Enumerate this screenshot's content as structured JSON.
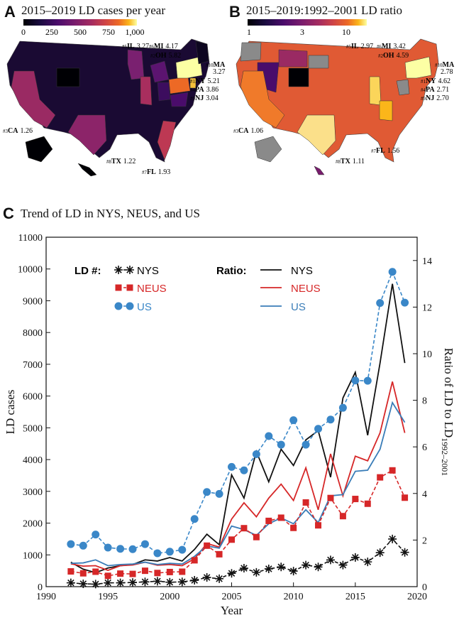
{
  "panels": {
    "a": {
      "letter": "A",
      "title": "2015–2019 LD cases per year",
      "colorbar_ticks": [
        "0",
        "250",
        "500",
        "750",
        "1,000"
      ],
      "labels": [
        {
          "rank": "#5",
          "state": "IL",
          "value": "3.27"
        },
        {
          "rank": "#6",
          "state": "MI",
          "value": "4.17"
        },
        {
          "rank": "#2",
          "state": "OH",
          "value": "5.82"
        },
        {
          "rank": "#10",
          "state": "MA",
          "value": "3.27"
        },
        {
          "rank": "#1",
          "state": "NY",
          "value": "5.21"
        },
        {
          "rank": "#4",
          "state": "PA",
          "value": "3.86"
        },
        {
          "rank": "#9",
          "state": "NJ",
          "value": "3.04"
        },
        {
          "rank": "#3",
          "state": "CA",
          "value": "1.26"
        },
        {
          "rank": "#7",
          "state": "FL",
          "value": "1.93"
        },
        {
          "rank": "#8",
          "state": "TX",
          "value": "1.22"
        }
      ]
    },
    "b": {
      "letter": "B",
      "title": "2015–2019:1992–2001 LD ratio",
      "colorbar_ticks": [
        "1",
        "3",
        "10"
      ],
      "labels": [
        {
          "rank": "#5",
          "state": "IL",
          "value": "2.97"
        },
        {
          "rank": "#6",
          "state": "MI",
          "value": "3.42"
        },
        {
          "rank": "#2",
          "state": "OH",
          "value": "4.59"
        },
        {
          "rank": "#10",
          "state": "MA",
          "value": "2.78"
        },
        {
          "rank": "#1",
          "state": "NY",
          "value": "4.62"
        },
        {
          "rank": "#4",
          "state": "PA",
          "value": "2.71"
        },
        {
          "rank": "#9",
          "state": "NJ",
          "value": "2.70"
        },
        {
          "rank": "#3",
          "state": "CA",
          "value": "1.06"
        },
        {
          "rank": "#7",
          "state": "FL",
          "value": "1.56"
        },
        {
          "rank": "#8",
          "state": "TX",
          "value": "1.11"
        }
      ]
    },
    "c": {
      "letter": "C",
      "title": "Trend of LD in NYS, NEUS, and US"
    }
  },
  "colors": {
    "nys": "#111111",
    "neus": "#d62728",
    "us_marker": "#3a87c8",
    "us_line": "#3a7db8"
  },
  "legend": {
    "ld_header": "LD #:",
    "ratio_header": "Ratio:",
    "nys": "NYS",
    "neus": "NEUS",
    "us": "US"
  },
  "chart_data": {
    "type": "line",
    "title": "Trend of LD in NYS, NEUS, and US",
    "xlabel": "Year",
    "ylabel": "LD cases",
    "y2label": "Ratio of LD to LD",
    "y2label_sub": "1992–2001",
    "xlim": [
      1990,
      2020
    ],
    "ylim": [
      0,
      11000
    ],
    "y2lim": [
      0,
      15
    ],
    "xticks": [
      1990,
      1995,
      2000,
      2005,
      2010,
      2015,
      2020
    ],
    "yticks": [
      0,
      1000,
      2000,
      3000,
      4000,
      5000,
      6000,
      7000,
      8000,
      9000,
      10000,
      11000
    ],
    "y2ticks": [
      0,
      2,
      4,
      6,
      8,
      10,
      12,
      14
    ],
    "x": [
      1992,
      1993,
      1994,
      1995,
      1996,
      1997,
      1998,
      1999,
      2000,
      2001,
      2002,
      2003,
      2004,
      2005,
      2006,
      2007,
      2008,
      2009,
      2010,
      2011,
      2012,
      2013,
      2014,
      2015,
      2016,
      2017,
      2018,
      2019
    ],
    "series": [
      {
        "name": "NYS",
        "kind": "LD #",
        "axis": "left",
        "marker": "star",
        "dash": true,
        "values": [
          120,
          90,
          80,
          120,
          120,
          130,
          150,
          170,
          140,
          150,
          200,
          290,
          250,
          420,
          580,
          450,
          560,
          620,
          490,
          680,
          620,
          840,
          680,
          920,
          780,
          1070,
          1500,
          1080
        ]
      },
      {
        "name": "NEUS",
        "kind": "LD #",
        "axis": "left",
        "marker": "square",
        "dash": true,
        "values": [
          480,
          420,
          470,
          340,
          410,
          400,
          500,
          430,
          460,
          470,
          830,
          1290,
          1020,
          1480,
          1840,
          1560,
          2070,
          2170,
          1850,
          2650,
          1930,
          2790,
          2220,
          2760,
          2610,
          3440,
          3660,
          2800
        ]
      },
      {
        "name": "US",
        "kind": "LD #",
        "axis": "left",
        "marker": "circle",
        "dash": true,
        "values": [
          1340,
          1290,
          1640,
          1230,
          1190,
          1180,
          1340,
          1050,
          1100,
          1160,
          2130,
          2980,
          2920,
          3770,
          3660,
          4170,
          4740,
          4470,
          5240,
          4470,
          4970,
          5260,
          5630,
          6490,
          6480,
          8930,
          9910,
          8940
        ]
      },
      {
        "name": "NYS",
        "kind": "Ratio",
        "axis": "right",
        "marker": "none",
        "dash": false,
        "values": [
          1.05,
          0.75,
          0.6,
          0.8,
          0.9,
          0.95,
          1.15,
          1.1,
          1.25,
          1.1,
          1.6,
          2.25,
          1.8,
          4.8,
          3.8,
          5.8,
          4.5,
          5.9,
          5.2,
          6.3,
          6.7,
          4.7,
          8.1,
          9.2,
          6.5,
          9.6,
          13.0,
          9.6
        ]
      },
      {
        "name": "NEUS",
        "kind": "Ratio",
        "axis": "right",
        "marker": "none",
        "dash": false,
        "values": [
          0.98,
          0.88,
          0.9,
          0.7,
          0.9,
          0.93,
          1.05,
          0.92,
          0.95,
          0.9,
          1.2,
          1.85,
          1.7,
          2.9,
          3.6,
          3.0,
          3.8,
          4.4,
          3.7,
          5.1,
          3.3,
          5.7,
          3.9,
          5.6,
          5.4,
          6.6,
          8.8,
          6.6
        ]
      },
      {
        "name": "US",
        "kind": "Ratio",
        "axis": "right",
        "marker": "none",
        "dash": false,
        "values": [
          1.0,
          1.02,
          1.15,
          0.9,
          0.95,
          0.97,
          1.05,
          0.95,
          1.0,
          0.97,
          1.3,
          1.75,
          1.65,
          2.6,
          2.45,
          2.2,
          2.7,
          2.95,
          2.7,
          3.3,
          2.75,
          3.9,
          3.95,
          4.95,
          5.0,
          5.9,
          7.9,
          7.05
        ]
      }
    ]
  }
}
